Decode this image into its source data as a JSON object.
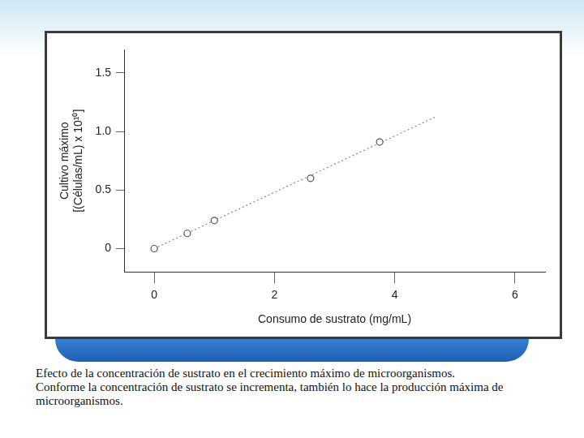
{
  "chart_data": {
    "type": "scatter",
    "xlabel": "Consumo de sustrato (mg/mL)",
    "ylabel": [
      "Cultivo máximo",
      "[(Células/mL) x 10¹⁰]"
    ],
    "series": [
      {
        "type": "scatter",
        "marker": "circle",
        "color": "#555555",
        "x": [
          0,
          0.55,
          1.0,
          2.6,
          3.75
        ],
        "values": [
          0,
          0.13,
          0.24,
          0.6,
          0.91
        ]
      },
      {
        "type": "line",
        "line_style": "dotted",
        "color": "#888888",
        "x": [
          0,
          4.7
        ],
        "values": [
          0,
          1.13
        ]
      }
    ],
    "xlim": [
      -0.5,
      6.5
    ],
    "ylim": [
      -0.2,
      1.7
    ],
    "xticks": [
      0,
      2,
      4,
      6
    ],
    "yticks": [
      0,
      0.5,
      {
        "value": 1,
        "label": "1.0"
      },
      1.5
    ],
    "grid": false
  },
  "caption": "Efecto de la concentración de sustrato en el crecimiento máximo de microorganismos. Conforme la concentración de sustrato se incrementa, también lo hace la producción máxima de microorganismos."
}
